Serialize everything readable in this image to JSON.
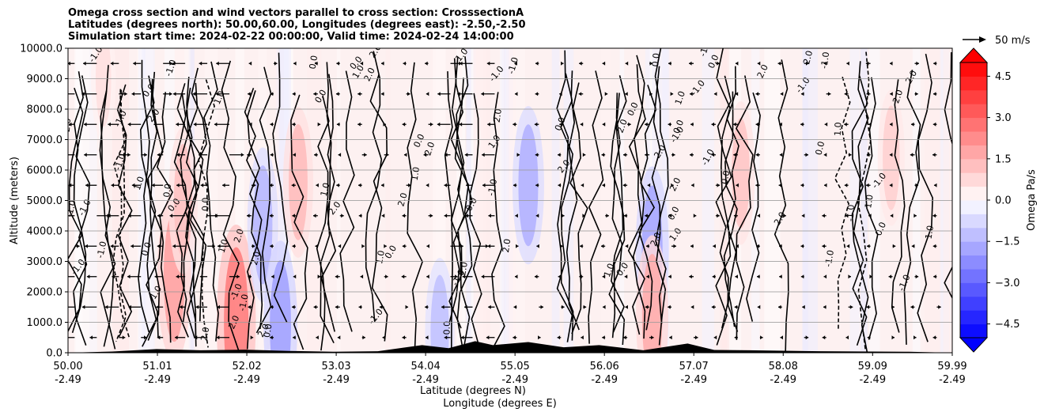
{
  "title_lines": [
    "Omega cross section and wind vectors parallel to cross section: CrosssectionA",
    "Latitudes (degrees north): 50.00,60.00, Longitudes (degrees east): -2.50,-2.50",
    "Simulation start time: 2024-02-22 00:00:00, Valid time: 2024-02-24 14:00:00"
  ],
  "chart_data": {
    "type": "heatmap",
    "ylabel": "Altitude (meters)",
    "xlabel_lines": [
      "Latitude (degrees N)",
      "Longitude (degrees E)"
    ],
    "ylim": [
      0,
      10000
    ],
    "yticks": [
      0,
      1000,
      2000,
      3000,
      4000,
      5000,
      6000,
      7000,
      8000,
      9000,
      10000
    ],
    "ytick_labels": [
      "0.0",
      "1000.0",
      "2000.0",
      "3000.0",
      "4000.0",
      "5000.0",
      "6000.0",
      "7000.0",
      "8000.0",
      "9000.0",
      "10000.0"
    ],
    "xlim": [
      50.0,
      59.99
    ],
    "xticks": [
      50.0,
      51.01,
      52.02,
      53.03,
      54.04,
      55.05,
      56.06,
      57.07,
      58.08,
      59.09,
      59.99
    ],
    "xtick_lat_labels": [
      "50.00",
      "51.01",
      "52.02",
      "53.03",
      "54.04",
      "55.05",
      "56.06",
      "57.07",
      "58.08",
      "59.09",
      "59.99"
    ],
    "xtick_lon_labels": [
      "-2.49",
      "-2.49",
      "-2.49",
      "-2.49",
      "-2.49",
      "-2.49",
      "-2.49",
      "-2.49",
      "-2.49",
      "-2.49",
      "-2.49"
    ],
    "grid": "horizontal",
    "colorbar": {
      "label": "Omega Pa/s",
      "range": [
        -5.0,
        5.0
      ],
      "ticks": [
        -4.5,
        -3.0,
        -1.5,
        0.0,
        1.5,
        3.0,
        4.5
      ],
      "tick_labels": [
        "−4.5",
        "−3.0",
        "−1.5",
        "0.0",
        "1.5",
        "3.0",
        "4.5"
      ],
      "cmap": "bwr",
      "extend": "both"
    },
    "quiver_key": "50 m/s",
    "contour_labels": [
      "-1.0",
      "0.0",
      "1.0",
      "2.0"
    ],
    "omega_features": [
      {
        "lat": 50.4,
        "alt": 9000,
        "omega": 0.6
      },
      {
        "lat": 51.2,
        "alt": 2500,
        "omega": 1.8
      },
      {
        "lat": 51.3,
        "alt": 5000,
        "omega": 1.2
      },
      {
        "lat": 51.9,
        "alt": 1000,
        "omega": 2.5
      },
      {
        "lat": 52.2,
        "alt": 4200,
        "omega": -1.4
      },
      {
        "lat": 52.6,
        "alt": 5600,
        "omega": 1.3
      },
      {
        "lat": 52.4,
        "alt": 900,
        "omega": -1.8
      },
      {
        "lat": 54.2,
        "alt": 700,
        "omega": -1.2
      },
      {
        "lat": 55.2,
        "alt": 5500,
        "omega": -1.5
      },
      {
        "lat": 56.6,
        "alt": 3400,
        "omega": -1.7
      },
      {
        "lat": 56.6,
        "alt": 1200,
        "omega": 1.6
      },
      {
        "lat": 57.6,
        "alt": 5900,
        "omega": 1.1
      },
      {
        "lat": 59.3,
        "alt": 6400,
        "omega": 0.9
      }
    ],
    "terrain": [
      {
        "lat": 50.5,
        "alt": 40
      },
      {
        "lat": 51.0,
        "alt": 120
      },
      {
        "lat": 51.5,
        "alt": 80
      },
      {
        "lat": 52.0,
        "alt": 100
      },
      {
        "lat": 52.5,
        "alt": 60
      },
      {
        "lat": 53.0,
        "alt": 30
      },
      {
        "lat": 53.5,
        "alt": 50
      },
      {
        "lat": 54.0,
        "alt": 250
      },
      {
        "lat": 54.3,
        "alt": 150
      },
      {
        "lat": 54.6,
        "alt": 380
      },
      {
        "lat": 54.8,
        "alt": 250
      },
      {
        "lat": 55.2,
        "alt": 350
      },
      {
        "lat": 55.6,
        "alt": 180
      },
      {
        "lat": 56.0,
        "alt": 250
      },
      {
        "lat": 56.5,
        "alt": 80
      },
      {
        "lat": 57.0,
        "alt": 300
      },
      {
        "lat": 57.3,
        "alt": 90
      },
      {
        "lat": 57.7,
        "alt": 80
      },
      {
        "lat": 58.5,
        "alt": 50
      },
      {
        "lat": 59.5,
        "alt": 30
      }
    ]
  }
}
